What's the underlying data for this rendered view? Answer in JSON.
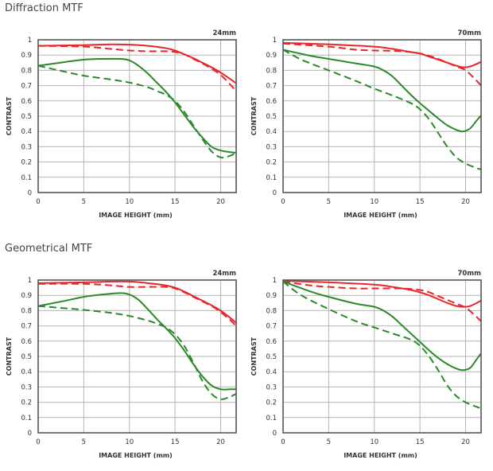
{
  "sections": [
    {
      "title": "Diffraction MTF"
    },
    {
      "title": "Geometrical MTF"
    }
  ],
  "colors": {
    "red": "#e8262b",
    "green": "#2a8a2a",
    "grid": "#b4b4b4",
    "frame": "#555555"
  },
  "chart_data": [
    {
      "type": "line",
      "section": "Diffraction MTF",
      "focal_label": "24mm",
      "xlabel": "IMAGE HEIGHT (mm)",
      "ylabel": "CONTRAST",
      "xlim": [
        0,
        21.7
      ],
      "ylim": [
        0,
        1
      ],
      "xticks": [
        "0",
        "5",
        "10",
        "15",
        "20"
      ],
      "yticks": [
        "0",
        "0.1",
        "0.2",
        "0.3",
        "0.4",
        "0.5",
        "0.6",
        "0.7",
        "0.8",
        "0.9",
        "1"
      ],
      "grid": true,
      "series": [
        {
          "name": "red-sagittal",
          "color": "red",
          "dash": false,
          "x": [
            0,
            5,
            8,
            10,
            12,
            14,
            15,
            16,
            17,
            18,
            19,
            20,
            21,
            21.7
          ],
          "y": [
            0.96,
            0.965,
            0.97,
            0.968,
            0.96,
            0.945,
            0.93,
            0.905,
            0.88,
            0.85,
            0.82,
            0.785,
            0.745,
            0.715
          ]
        },
        {
          "name": "red-meridional",
          "color": "red",
          "dash": true,
          "x": [
            0,
            5,
            8,
            10,
            12,
            14,
            15,
            16,
            17,
            18,
            19,
            20,
            21,
            21.7
          ],
          "y": [
            0.96,
            0.955,
            0.94,
            0.93,
            0.925,
            0.925,
            0.92,
            0.905,
            0.875,
            0.845,
            0.81,
            0.77,
            0.71,
            0.665
          ]
        },
        {
          "name": "green-sagittal",
          "color": "green",
          "dash": false,
          "x": [
            0,
            3,
            5,
            7,
            9,
            10,
            11,
            12,
            13,
            14,
            15,
            16,
            17,
            18,
            19,
            20,
            21,
            21.7
          ],
          "y": [
            0.83,
            0.855,
            0.87,
            0.875,
            0.875,
            0.865,
            0.83,
            0.78,
            0.72,
            0.66,
            0.59,
            0.51,
            0.43,
            0.36,
            0.3,
            0.275,
            0.265,
            0.26
          ]
        },
        {
          "name": "green-meridional",
          "color": "green",
          "dash": true,
          "x": [
            0,
            3,
            5,
            8,
            10,
            12,
            13,
            14,
            15,
            16,
            17,
            18,
            19,
            20,
            21,
            21.7
          ],
          "y": [
            0.83,
            0.79,
            0.765,
            0.74,
            0.72,
            0.69,
            0.665,
            0.64,
            0.6,
            0.53,
            0.44,
            0.35,
            0.27,
            0.23,
            0.24,
            0.26
          ]
        }
      ]
    },
    {
      "type": "line",
      "section": "Diffraction MTF",
      "focal_label": "70mm",
      "xlabel": "IMAGE HEIGHT (mm)",
      "ylabel": "CONTRAST",
      "xlim": [
        0,
        21.7
      ],
      "ylim": [
        0,
        1
      ],
      "xticks": [
        "0",
        "5",
        "10",
        "15",
        "20"
      ],
      "yticks": [
        "0",
        "0.1",
        "0.2",
        "0.3",
        "0.4",
        "0.5",
        "0.6",
        "0.7",
        "0.8",
        "0.9",
        "1"
      ],
      "grid": true,
      "series": [
        {
          "name": "red-sagittal",
          "color": "red",
          "dash": false,
          "x": [
            0,
            5,
            10,
            12,
            14,
            15,
            16,
            17,
            18,
            19,
            19.7,
            20.5,
            21.7
          ],
          "y": [
            0.98,
            0.97,
            0.955,
            0.94,
            0.92,
            0.91,
            0.89,
            0.87,
            0.85,
            0.83,
            0.82,
            0.825,
            0.855
          ]
        },
        {
          "name": "red-meridional",
          "color": "red",
          "dash": true,
          "x": [
            0,
            5,
            8,
            10,
            13,
            15,
            16,
            17,
            18,
            19,
            20,
            21,
            21.7
          ],
          "y": [
            0.975,
            0.955,
            0.935,
            0.93,
            0.925,
            0.91,
            0.895,
            0.875,
            0.85,
            0.825,
            0.8,
            0.745,
            0.7
          ]
        },
        {
          "name": "green-sagittal",
          "color": "green",
          "dash": false,
          "x": [
            0,
            3,
            5,
            8,
            10,
            11,
            12,
            13,
            14,
            15,
            16,
            17,
            18,
            19,
            19.7,
            20.5,
            21.2,
            21.7
          ],
          "y": [
            0.935,
            0.895,
            0.875,
            0.845,
            0.825,
            0.8,
            0.76,
            0.7,
            0.64,
            0.585,
            0.535,
            0.485,
            0.44,
            0.41,
            0.4,
            0.42,
            0.47,
            0.505
          ]
        },
        {
          "name": "green-meridional",
          "color": "green",
          "dash": true,
          "x": [
            0,
            2,
            5,
            8,
            10,
            12,
            14,
            15,
            16,
            17,
            18,
            19,
            20,
            21,
            21.7
          ],
          "y": [
            0.935,
            0.87,
            0.8,
            0.73,
            0.68,
            0.635,
            0.585,
            0.545,
            0.48,
            0.39,
            0.3,
            0.23,
            0.19,
            0.165,
            0.15
          ]
        }
      ]
    },
    {
      "type": "line",
      "section": "Geometrical MTF",
      "focal_label": "24mm",
      "xlabel": "IMAGE HEIGHT (mm)",
      "ylabel": "CONTRAST",
      "xlim": [
        0,
        21.7
      ],
      "ylim": [
        0,
        1
      ],
      "xticks": [
        "0",
        "5",
        "10",
        "15",
        "20"
      ],
      "yticks": [
        "0",
        "0.1",
        "0.2",
        "0.3",
        "0.4",
        "0.5",
        "0.6",
        "0.7",
        "0.8",
        "0.9",
        "1"
      ],
      "grid": true,
      "series": [
        {
          "name": "red-sagittal",
          "color": "red",
          "dash": false,
          "x": [
            0,
            5,
            8,
            10,
            12,
            14,
            15,
            16,
            17,
            18,
            19,
            20,
            21,
            21.7
          ],
          "y": [
            0.98,
            0.985,
            0.99,
            0.99,
            0.98,
            0.965,
            0.95,
            0.925,
            0.895,
            0.865,
            0.835,
            0.8,
            0.755,
            0.72
          ]
        },
        {
          "name": "red-meridional",
          "color": "red",
          "dash": true,
          "x": [
            0,
            5,
            8,
            10,
            12,
            14,
            15,
            16,
            17,
            18,
            19,
            20,
            21,
            21.7
          ],
          "y": [
            0.975,
            0.975,
            0.965,
            0.955,
            0.955,
            0.955,
            0.945,
            0.92,
            0.89,
            0.86,
            0.83,
            0.79,
            0.74,
            0.7
          ]
        },
        {
          "name": "green-sagittal",
          "color": "green",
          "dash": false,
          "x": [
            0,
            3,
            5,
            7,
            9,
            10,
            11,
            12,
            13,
            14,
            15,
            16,
            17,
            18,
            19,
            20,
            21,
            21.7
          ],
          "y": [
            0.83,
            0.865,
            0.89,
            0.905,
            0.915,
            0.905,
            0.87,
            0.81,
            0.745,
            0.685,
            0.62,
            0.54,
            0.45,
            0.37,
            0.31,
            0.285,
            0.285,
            0.285
          ]
        },
        {
          "name": "green-meridional",
          "color": "green",
          "dash": true,
          "x": [
            0,
            3,
            5,
            8,
            10,
            12,
            13,
            14,
            15,
            16,
            17,
            18,
            19,
            20,
            21,
            21.7
          ],
          "y": [
            0.83,
            0.815,
            0.805,
            0.785,
            0.765,
            0.735,
            0.715,
            0.69,
            0.645,
            0.57,
            0.46,
            0.34,
            0.255,
            0.22,
            0.235,
            0.255
          ]
        }
      ]
    },
    {
      "type": "line",
      "section": "Geometrical MTF",
      "focal_label": "70mm",
      "xlabel": "IMAGE HEIGHT (mm)",
      "ylabel": "CONTRAST",
      "xlim": [
        0,
        21.7
      ],
      "ylim": [
        0,
        1
      ],
      "xticks": [
        "0",
        "5",
        "10",
        "15",
        "20"
      ],
      "yticks": [
        "0",
        "0.1",
        "0.2",
        "0.3",
        "0.4",
        "0.5",
        "0.6",
        "0.7",
        "0.8",
        "0.9",
        "1"
      ],
      "grid": true,
      "series": [
        {
          "name": "red-sagittal",
          "color": "red",
          "dash": false,
          "x": [
            0,
            5,
            10,
            12,
            14,
            15,
            16,
            17,
            18,
            19,
            19.7,
            20.5,
            21.7
          ],
          "y": [
            0.995,
            0.985,
            0.97,
            0.955,
            0.935,
            0.92,
            0.9,
            0.875,
            0.85,
            0.83,
            0.825,
            0.83,
            0.865
          ]
        },
        {
          "name": "red-meridional",
          "color": "red",
          "dash": true,
          "x": [
            0,
            3,
            5,
            8,
            10,
            13,
            15,
            16,
            17,
            18,
            19,
            20,
            21,
            21.7
          ],
          "y": [
            0.99,
            0.965,
            0.955,
            0.945,
            0.945,
            0.945,
            0.935,
            0.92,
            0.895,
            0.87,
            0.845,
            0.82,
            0.77,
            0.73
          ]
        },
        {
          "name": "green-sagittal",
          "color": "green",
          "dash": false,
          "x": [
            0,
            3,
            5,
            8,
            10,
            11,
            12,
            13,
            14,
            15,
            16,
            17,
            18,
            19,
            19.7,
            20.5,
            21.2,
            21.7
          ],
          "y": [
            0.99,
            0.925,
            0.89,
            0.845,
            0.825,
            0.8,
            0.76,
            0.705,
            0.65,
            0.595,
            0.54,
            0.49,
            0.45,
            0.42,
            0.41,
            0.425,
            0.48,
            0.52
          ]
        },
        {
          "name": "green-meridional",
          "color": "green",
          "dash": true,
          "x": [
            0,
            2,
            5,
            8,
            10,
            12,
            14,
            15,
            16,
            17,
            18,
            19,
            20,
            21,
            21.7
          ],
          "y": [
            0.99,
            0.9,
            0.81,
            0.73,
            0.69,
            0.65,
            0.61,
            0.57,
            0.5,
            0.41,
            0.31,
            0.24,
            0.2,
            0.175,
            0.16
          ]
        }
      ]
    }
  ]
}
